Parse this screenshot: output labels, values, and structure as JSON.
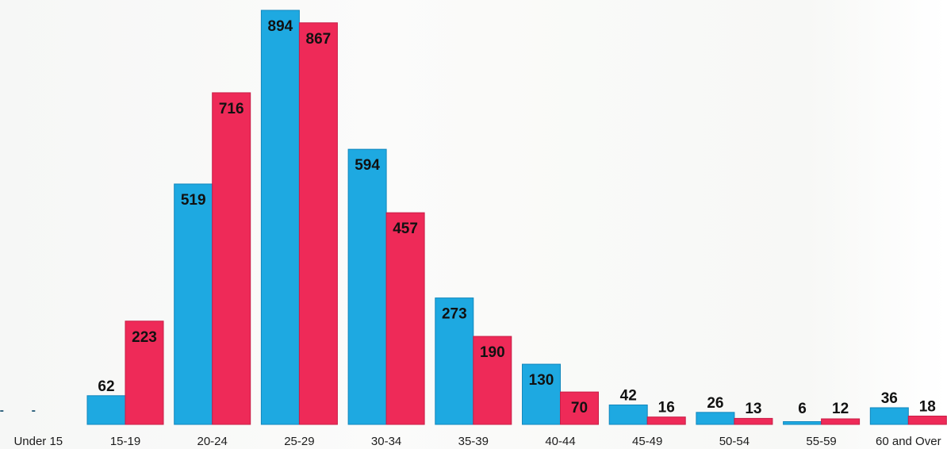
{
  "chart_data": {
    "type": "bar",
    "title": "",
    "xlabel": "",
    "ylabel": "",
    "ylim": [
      0,
      894
    ],
    "grid": false,
    "legend": "none",
    "categories": [
      "Under 15",
      "15-19",
      "20-24",
      "25-29",
      "30-34",
      "35-39",
      "40-44",
      "45-49",
      "50-54",
      "55-59",
      "60 and Over"
    ],
    "series": [
      {
        "color": "#1ea9e1",
        "values": [
          null,
          62,
          519,
          894,
          594,
          273,
          130,
          42,
          26,
          6,
          36
        ],
        "labels": [
          "-",
          "62",
          "519",
          "894",
          "594",
          "273",
          "130",
          "42",
          "26",
          "6",
          "36"
        ]
      },
      {
        "color": "#ee2a58",
        "values": [
          null,
          223,
          716,
          867,
          457,
          190,
          70,
          16,
          13,
          12,
          18
        ],
        "labels": [
          "-",
          "223",
          "716",
          "867",
          "457",
          "190",
          "70",
          "16",
          "13",
          "12",
          "18"
        ]
      }
    ]
  }
}
